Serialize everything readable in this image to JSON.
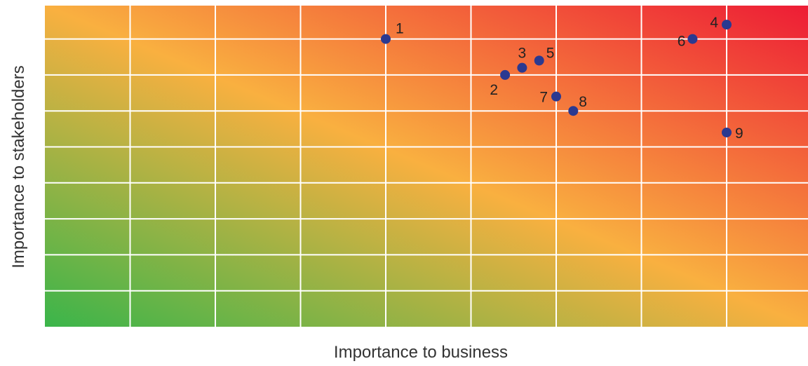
{
  "chart_data": {
    "type": "scatter",
    "title": "",
    "xlabel": "Importance to business",
    "ylabel": "Importance to stakeholders",
    "xlim": [
      0,
      9
    ],
    "ylim": [
      0,
      9
    ],
    "grid": true,
    "point_color": "#2b3990",
    "grid_color": "#ffffff",
    "gradient_colors": [
      "#3ab54a",
      "#f9b040",
      "#ed1c35"
    ],
    "points": [
      {
        "label": "1",
        "x": 4.0,
        "y": 8.0
      },
      {
        "label": "2",
        "x": 5.4,
        "y": 7.0
      },
      {
        "label": "3",
        "x": 5.6,
        "y": 7.2
      },
      {
        "label": "4",
        "x": 8.0,
        "y": 8.4
      },
      {
        "label": "5",
        "x": 5.8,
        "y": 7.4
      },
      {
        "label": "6",
        "x": 7.6,
        "y": 8.0
      },
      {
        "label": "7",
        "x": 6.0,
        "y": 6.4
      },
      {
        "label": "8",
        "x": 6.2,
        "y": 6.0
      },
      {
        "label": "9",
        "x": 8.0,
        "y": 5.4
      }
    ]
  }
}
